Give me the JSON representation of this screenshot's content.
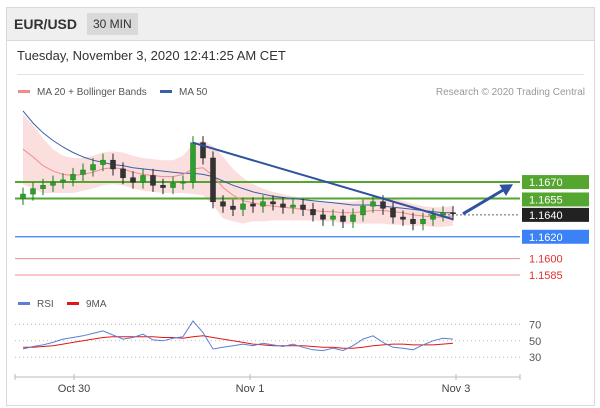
{
  "header": {
    "symbol": "EUR/USD",
    "timeframe": "30 MIN"
  },
  "timestamp": "Tuesday, November 3, 2020 12:41:25 AM CET",
  "credit": "Research © 2020 Trading Central",
  "colors": {
    "candle_up": "#1a7a1a",
    "candle_down": "#222222",
    "bollinger_fill": "#f9d4d4",
    "ma20": "#f28c8c",
    "ma50": "#3a5fa8",
    "trendline": "#2f52a0",
    "resistance": "#55a630",
    "pivot": "#3b82f6",
    "support": "#f28c8c",
    "current": "#222222",
    "rsi": "#5b7fd6",
    "rsi_ma": "#e01818"
  },
  "chart_data": [
    {
      "type": "candlestick",
      "legend": [
        {
          "name": "MA 20 + Bollinger Bands",
          "color": "#f28c8c"
        },
        {
          "name": "MA 50",
          "color": "#3a5fa8"
        }
      ],
      "x_ticks": [
        "Oct 30",
        "Nov 1",
        "Nov 3"
      ],
      "y_range": [
        1.1575,
        1.1745
      ],
      "levels": [
        {
          "label": "1.1670",
          "value": 1.167,
          "kind": "resistance"
        },
        {
          "label": "1.1655",
          "value": 1.1655,
          "kind": "resistance"
        },
        {
          "label": "1.1640",
          "value": 1.164,
          "kind": "current"
        },
        {
          "label": "1.1620",
          "value": 1.162,
          "kind": "pivot"
        },
        {
          "label": "1.1600",
          "value": 1.16,
          "kind": "support"
        },
        {
          "label": "1.1585",
          "value": 1.1585,
          "kind": "support"
        }
      ],
      "price_series": [
        1.1659,
        1.1664,
        1.1667,
        1.167,
        1.1672,
        1.1677,
        1.1681,
        1.1686,
        1.169,
        1.1682,
        1.1674,
        1.167,
        1.1676,
        1.1667,
        1.1665,
        1.1669,
        1.167,
        1.1706,
        1.1692,
        1.1652,
        1.1648,
        1.1645,
        1.165,
        1.1648,
        1.1652,
        1.165,
        1.1647,
        1.1649,
        1.1645,
        1.164,
        1.1636,
        1.1639,
        1.1634,
        1.164,
        1.1648,
        1.1652,
        1.1646,
        1.1638,
        1.1636,
        1.1632,
        1.1636,
        1.164,
        1.1642,
        1.1641
      ],
      "ma20": [
        1.17,
        1.1693,
        1.1685,
        1.168,
        1.1677,
        1.1676,
        1.1677,
        1.1679,
        1.1682,
        1.1683,
        1.1682,
        1.1679,
        1.1677,
        1.1676,
        1.1675,
        1.1675,
        1.1677,
        1.1682,
        1.1683,
        1.1676,
        1.1665,
        1.1658,
        1.1653,
        1.1651,
        1.1649,
        1.1648,
        1.1647,
        1.1646,
        1.1645,
        1.1644,
        1.1643,
        1.1643,
        1.1642,
        1.1642,
        1.1643,
        1.1644,
        1.1644,
        1.1643,
        1.1642,
        1.164,
        1.1639,
        1.1638,
        1.1638,
        1.1639
      ],
      "ma50": [
        1.1735,
        1.1724,
        1.1715,
        1.1708,
        1.1702,
        1.1697,
        1.1693,
        1.169,
        1.1688,
        1.1686,
        1.1685,
        1.1683,
        1.1682,
        1.1681,
        1.168,
        1.1679,
        1.1678,
        1.1678,
        1.1677,
        1.1675,
        1.1671,
        1.1667,
        1.1664,
        1.1661,
        1.1659,
        1.1657,
        1.1656,
        1.1655,
        1.1654,
        1.1653,
        1.1652,
        1.1651,
        1.165,
        1.1649,
        1.1649,
        1.1649,
        1.1648,
        1.1647,
        1.1646,
        1.1645,
        1.1644,
        1.1643,
        1.1642,
        1.1642
      ],
      "bb_upper": [
        1.1732,
        1.1722,
        1.171,
        1.17,
        1.1694,
        1.1692,
        1.1692,
        1.1694,
        1.1697,
        1.1698,
        1.1697,
        1.1694,
        1.1692,
        1.1691,
        1.169,
        1.169,
        1.1694,
        1.1705,
        1.1708,
        1.1703,
        1.1693,
        1.1682,
        1.1674,
        1.1668,
        1.1664,
        1.1661,
        1.1659,
        1.1657,
        1.1655,
        1.1653,
        1.1652,
        1.1652,
        1.1652,
        1.1652,
        1.1654,
        1.1656,
        1.1656,
        1.1655,
        1.1653,
        1.165,
        1.1648,
        1.1647,
        1.1647,
        1.1648
      ],
      "bb_lower": [
        1.1668,
        1.1664,
        1.166,
        1.166,
        1.166,
        1.166,
        1.1662,
        1.1664,
        1.1667,
        1.1668,
        1.1667,
        1.1664,
        1.1662,
        1.1661,
        1.166,
        1.166,
        1.166,
        1.1659,
        1.1658,
        1.1649,
        1.1637,
        1.1634,
        1.1632,
        1.1634,
        1.1634,
        1.1635,
        1.1635,
        1.1635,
        1.1635,
        1.1635,
        1.1634,
        1.1634,
        1.1632,
        1.1632,
        1.1632,
        1.1632,
        1.1632,
        1.1631,
        1.1631,
        1.163,
        1.163,
        1.1629,
        1.1629,
        1.163
      ],
      "trendline": {
        "from": [
          17,
          1.1706
        ],
        "to": [
          43,
          1.1636
        ]
      },
      "projection": {
        "from": [
          44,
          1.1641
        ],
        "to": [
          49,
          1.1668
        ]
      }
    },
    {
      "type": "line",
      "legend": [
        {
          "name": "RSI",
          "color": "#5b7fd6"
        },
        {
          "name": "9MA",
          "color": "#e01818"
        }
      ],
      "y_ticks": [
        "70",
        "50",
        "30"
      ],
      "y_range": [
        12,
        85
      ],
      "rsi": [
        40,
        43,
        45,
        48,
        52,
        54,
        56,
        59,
        62,
        57,
        52,
        54,
        58,
        51,
        50,
        53,
        55,
        74,
        60,
        40,
        42,
        44,
        46,
        44,
        47,
        45,
        43,
        46,
        42,
        39,
        38,
        41,
        38,
        44,
        52,
        56,
        48,
        42,
        41,
        39,
        45,
        50,
        53,
        52
      ],
      "rsi_ma": [
        42,
        42,
        43,
        44,
        46,
        48,
        50,
        52,
        54,
        55,
        55,
        55,
        55,
        55,
        54,
        54,
        53,
        55,
        56,
        54,
        52,
        50,
        48,
        46,
        45,
        44,
        44,
        44,
        44,
        43,
        42,
        42,
        41,
        41,
        42,
        44,
        45,
        46,
        46,
        45,
        45,
        45,
        46,
        47
      ]
    }
  ]
}
